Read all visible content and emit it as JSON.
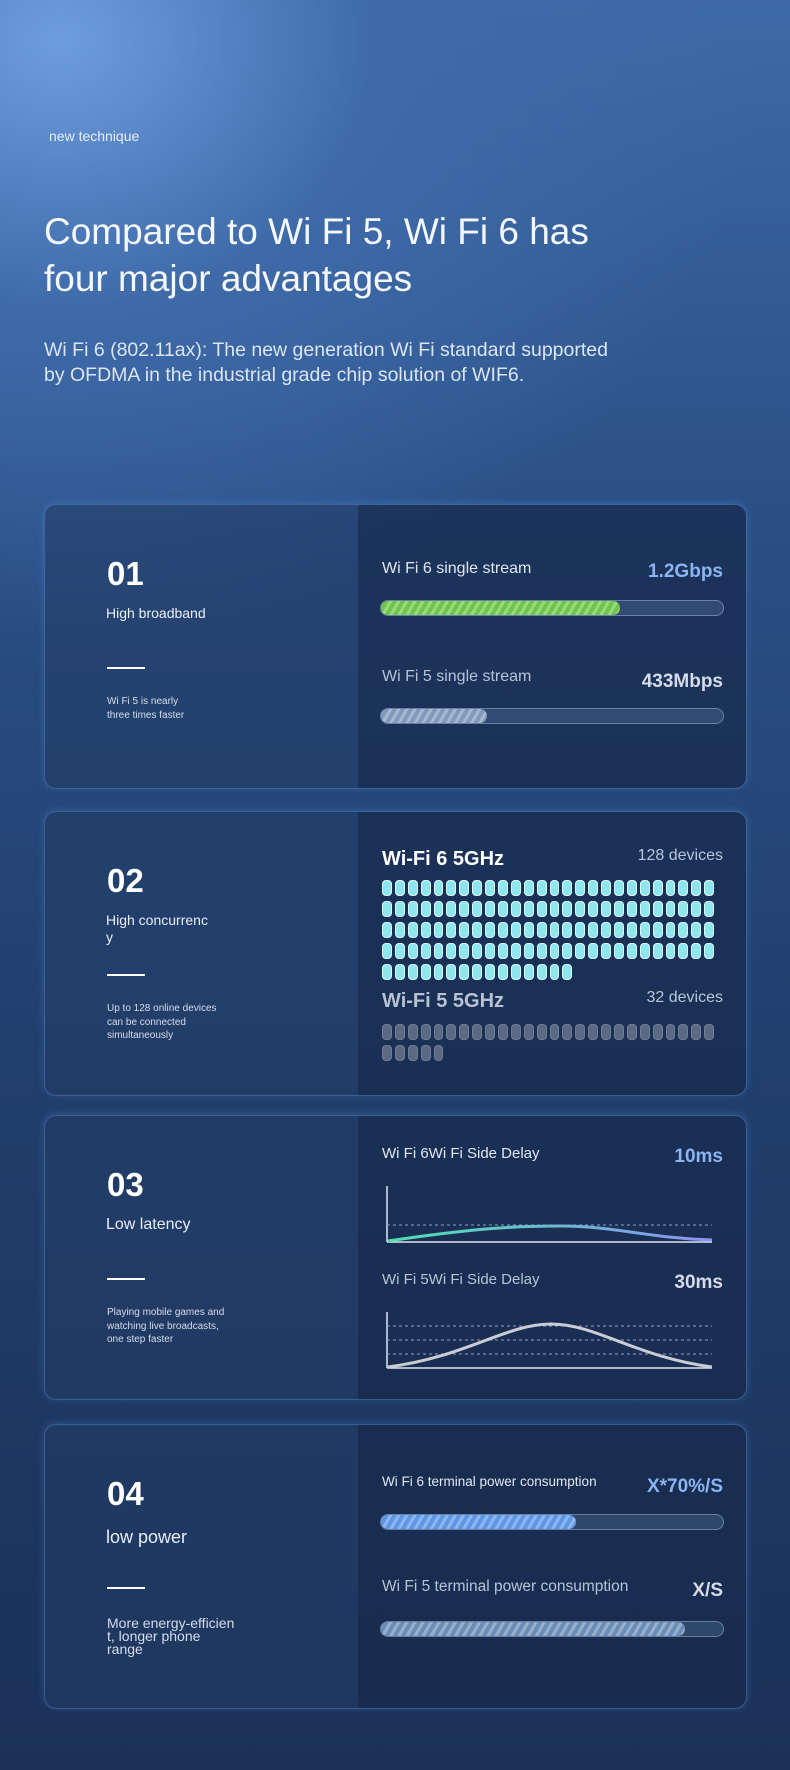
{
  "header": {
    "eyebrow": "new technique",
    "title": "Compared to Wi Fi 5, Wi Fi 6 has four major advantages",
    "description": "Wi Fi 6 (802.11ax): The new generation Wi Fi standard supported by OFDMA in the industrial grade chip solution of WIF6."
  },
  "cards": [
    {
      "number": "01",
      "title": "High broadband",
      "note": "Wi Fi 5 is nearly\nthree times faster",
      "rows": [
        {
          "label": "Wi Fi 6 single stream",
          "value": "1.2Gbps"
        },
        {
          "label": "Wi Fi 5 single stream",
          "value": "433Mbps"
        }
      ]
    },
    {
      "number": "02",
      "title": "High concurrenc\ny",
      "note": "Up to 128 online devices\ncan be connected\nsimultaneously",
      "rows": [
        {
          "label": "Wi-Fi 6 5GHz",
          "value": "128 devices"
        },
        {
          "label": "Wi-Fi 5 5GHz",
          "value": "32 devices"
        }
      ]
    },
    {
      "number": "03",
      "title": "Low latency",
      "note": "Playing mobile games and\nwatching live broadcasts,\none step faster",
      "rows": [
        {
          "label": "Wi Fi 6Wi Fi Side Delay",
          "value": "10ms"
        },
        {
          "label": "Wi Fi 5Wi Fi Side Delay",
          "value": "30ms"
        }
      ]
    },
    {
      "number": "04",
      "title": "low power",
      "note": "More energy-efficien\nt, longer phone\nrange",
      "rows": [
        {
          "label": "Wi Fi 6 terminal power consumption",
          "value": "X*70%/S"
        },
        {
          "label": "Wi Fi 5 terminal power consumption",
          "value": "X/S"
        }
      ]
    }
  ]
}
